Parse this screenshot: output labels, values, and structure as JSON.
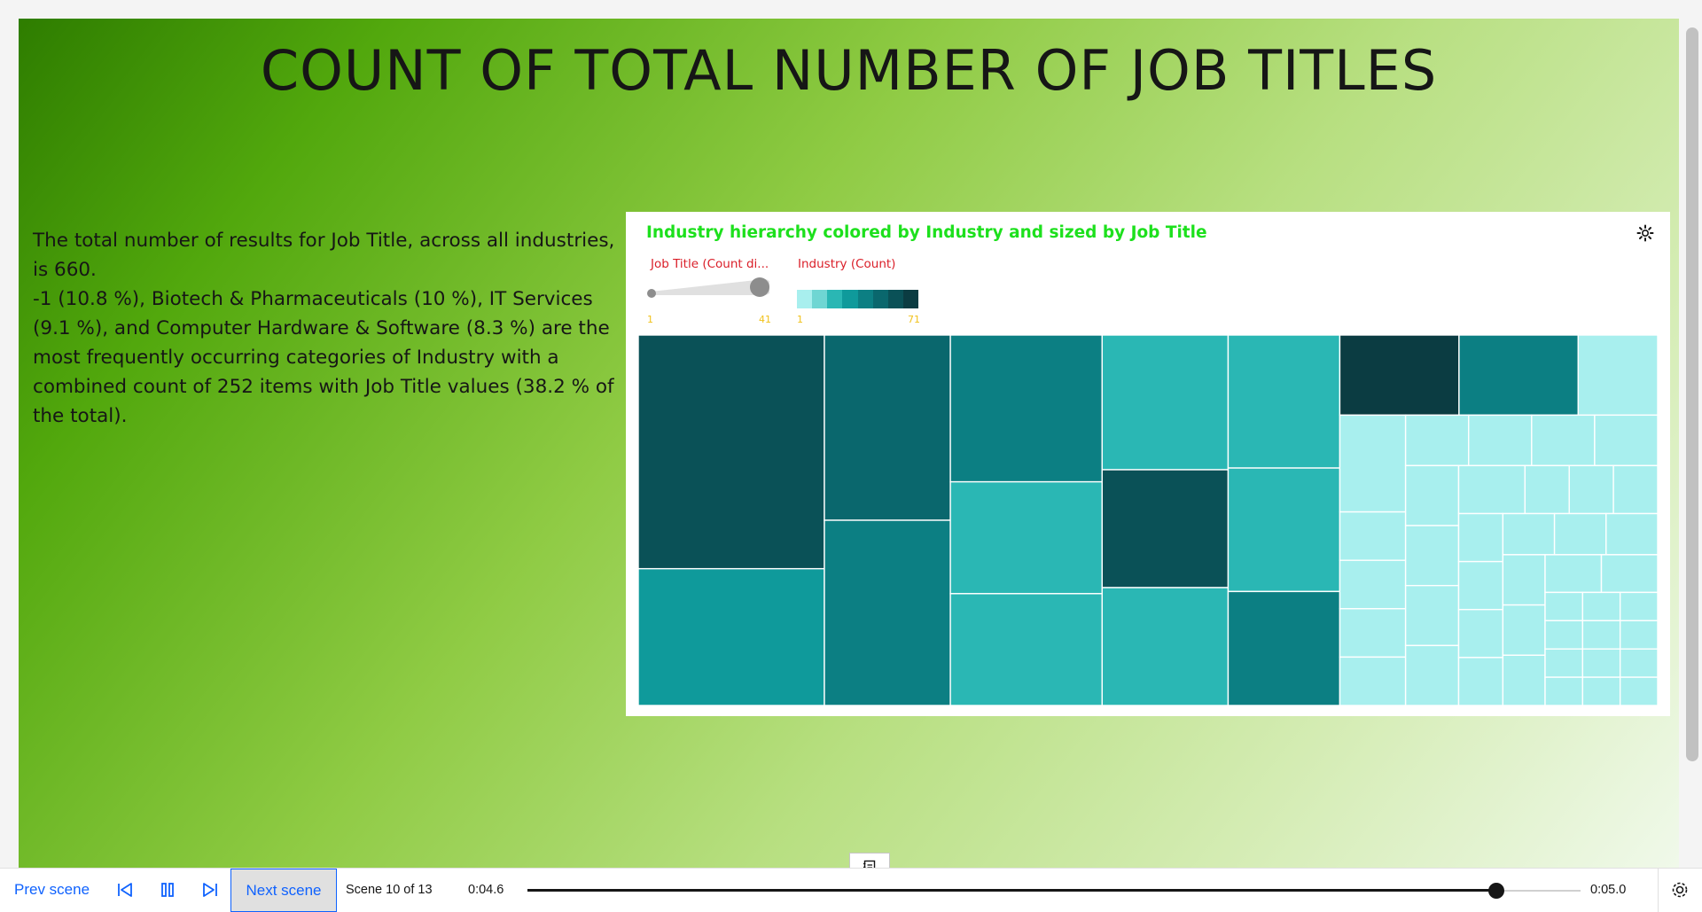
{
  "scene": {
    "title": "COUNT OF TOTAL NUMBER OF JOB TITLES",
    "summary_line1": "The total number of results for Job Title, across all industries, is 660.",
    "summary_line2": "-1 (10.8 %), Biotech & Pharmaceuticals (10 %), IT Services (9.1 %), and Computer Hardware & Software (8.3 %) are the most frequently occurring categories of Industry with a combined count of 252 items with Job Title values (38.2 % of the total)."
  },
  "chart": {
    "title": "Industry hierarchy colored by Industry and sized by Job Title",
    "size_legend_label": "Job Title (Count di...",
    "size_min": "1",
    "size_max": "41",
    "color_legend_label": "Industry (Count)",
    "color_min": "1",
    "color_max": "71",
    "color_scale": [
      "#a8efee",
      "#6fd6d3",
      "#2ab7b4",
      "#0f9a9b",
      "#0c7f83",
      "#0a676d",
      "#0a5157",
      "#0b3c42"
    ],
    "settings_icon": "gear-icon"
  },
  "chart_data": {
    "type": "treemap",
    "title": "Industry hierarchy colored by Industry and sized by Job Title",
    "size_measure": "Job Title (Count di...",
    "color_measure": "Industry (Count)",
    "size_range": [
      1,
      41
    ],
    "color_range": [
      1,
      71
    ],
    "tiles": [
      {
        "size": 41,
        "color": 60
      },
      {
        "size": 22,
        "color": 52
      },
      {
        "size": 24,
        "color": 35
      },
      {
        "size": 22,
        "color": 40
      },
      {
        "size": 21,
        "color": 40
      },
      {
        "size": 16,
        "color": 20
      },
      {
        "size": 16,
        "color": 20
      },
      {
        "size": 14,
        "color": 62
      },
      {
        "size": 14,
        "color": 20
      },
      {
        "size": 16,
        "color": 20
      },
      {
        "size": 14,
        "color": 20
      },
      {
        "size": 12,
        "color": 40
      },
      {
        "size": 13,
        "color": 20
      },
      {
        "size": 9,
        "color": 71
      },
      {
        "size": 9,
        "color": 45
      },
      {
        "size": 6,
        "color": 1
      },
      {
        "size": 6,
        "color": 1
      },
      {
        "size": 3,
        "color": 1
      },
      {
        "size": 3,
        "color": 1
      },
      {
        "size": 3,
        "color": 1
      },
      {
        "size": 3,
        "color": 1
      },
      {
        "size": 3,
        "color": 1
      },
      {
        "size": 3,
        "color": 1
      },
      {
        "size": 3,
        "color": 1
      },
      {
        "size": 3,
        "color": 1
      },
      {
        "size": 3,
        "color": 1
      },
      {
        "size": 3,
        "color": 1
      },
      {
        "size": 3,
        "color": 1
      },
      {
        "size": 3,
        "color": 1
      },
      {
        "size": 3,
        "color": 1
      },
      {
        "size": 2,
        "color": 1
      },
      {
        "size": 2,
        "color": 1
      },
      {
        "size": 2,
        "color": 1
      },
      {
        "size": 2,
        "color": 1
      },
      {
        "size": 2,
        "color": 1
      },
      {
        "size": 2,
        "color": 1
      },
      {
        "size": 2,
        "color": 1
      },
      {
        "size": 2,
        "color": 1
      },
      {
        "size": 2,
        "color": 1
      },
      {
        "size": 2,
        "color": 1
      },
      {
        "size": 2,
        "color": 1
      },
      {
        "size": 2,
        "color": 1
      },
      {
        "size": 2,
        "color": 1
      },
      {
        "size": 2,
        "color": 1
      },
      {
        "size": 2,
        "color": 1
      },
      {
        "size": 1,
        "color": 1
      },
      {
        "size": 1,
        "color": 1
      },
      {
        "size": 1,
        "color": 1
      },
      {
        "size": 1,
        "color": 1
      },
      {
        "size": 1,
        "color": 1
      },
      {
        "size": 1,
        "color": 1
      },
      {
        "size": 1,
        "color": 1
      },
      {
        "size": 1,
        "color": 1
      },
      {
        "size": 1,
        "color": 1
      },
      {
        "size": 1,
        "color": 1
      },
      {
        "size": 1,
        "color": 1
      },
      {
        "size": 1,
        "color": 1
      }
    ]
  },
  "player": {
    "prev_label": "Prev scene",
    "next_label": "Next scene",
    "scene_counter": "Scene 10 of 13",
    "time_current": "0:04.6",
    "time_total": "0:05.0",
    "progress": 0.92,
    "accent": "#0f62fe"
  }
}
